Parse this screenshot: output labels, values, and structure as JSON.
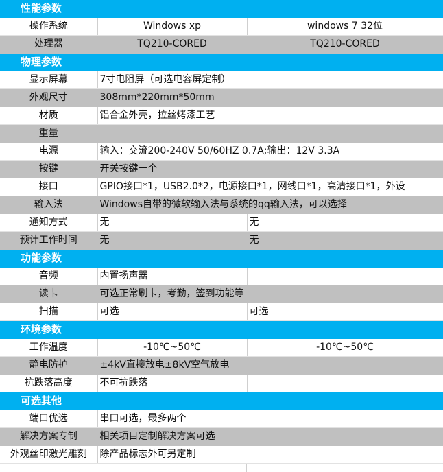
{
  "colors": {
    "section": "#00b0f0",
    "gray_row": "#c0c0c0"
  },
  "sections": [
    {
      "title": "性能参数",
      "rows": [
        {
          "label": "操作系统",
          "values": [
            "Windows xp",
            "windows 7 32位"
          ],
          "gray": false,
          "center": true
        },
        {
          "label": "处理器",
          "values": [
            "TQ210-CORED",
            "TQ210-CORED"
          ],
          "gray": true,
          "center": true
        }
      ]
    },
    {
      "title": "物理参数",
      "rows": [
        {
          "label": "显示屏幕",
          "values": [
            "7寸电阻屏（可选电容屏定制）"
          ],
          "gray": false
        },
        {
          "label": "外观尺寸",
          "values": [
            "308mm*220mm*50mm"
          ],
          "gray": true
        },
        {
          "label": "材质",
          "values": [
            "铝合金外壳，拉丝烤漆工艺"
          ],
          "gray": false
        },
        {
          "label": "重量",
          "values": [
            ""
          ],
          "gray": true
        },
        {
          "label": "电源",
          "values": [
            "输入：交流200-240V  50/60HZ 0.7A;输出：12V 3.3A"
          ],
          "gray": false
        },
        {
          "label": "按键",
          "values": [
            "开关按键一个"
          ],
          "gray": true
        },
        {
          "label": "接口",
          "values": [
            "GPIO接口*1，USB2.0*2，电源接口*1，网线口*1，高清接口*1，外设"
          ],
          "gray": false
        },
        {
          "label": "输入法",
          "values": [
            "Windows自带的微软输入法与系统的qq输入法，可以选择"
          ],
          "gray": true
        },
        {
          "label": "通知方式",
          "values": [
            "无",
            "无"
          ],
          "gray": false
        },
        {
          "label": "预计工作时间",
          "values": [
            "无",
            "无"
          ],
          "gray": true
        }
      ]
    },
    {
      "title": "功能参数",
      "rows": [
        {
          "label": "音频",
          "values": [
            "内置扬声器",
            ""
          ],
          "gray": false
        },
        {
          "label": "读卡",
          "values": [
            "可选正常刷卡，考勤，签到功能等"
          ],
          "gray": true
        },
        {
          "label": "扫描",
          "values": [
            "可选",
            "可选"
          ],
          "gray": false
        }
      ]
    },
    {
      "title": "环境参数",
      "rows": [
        {
          "label": "工作温度",
          "values": [
            "-10℃~50℃",
            "-10℃~50℃"
          ],
          "gray": false,
          "center": true
        },
        {
          "label": "静电防护",
          "values": [
            "±4kV直接放电±8kV空气放电"
          ],
          "gray": true
        },
        {
          "label": "抗跌落高度",
          "values": [
            "不可抗跌落",
            ""
          ],
          "gray": false
        }
      ]
    },
    {
      "title": "可选其他",
      "rows": [
        {
          "label": "端口优选",
          "values": [
            "串口可选，最多两个"
          ],
          "gray": false
        },
        {
          "label": "解决方案专制",
          "values": [
            "相关项目定制解决方案可选"
          ],
          "gray": true
        },
        {
          "label": "外观丝印激光雕刻",
          "values": [
            "除产品标志外可另定制"
          ],
          "gray": false
        }
      ]
    }
  ]
}
